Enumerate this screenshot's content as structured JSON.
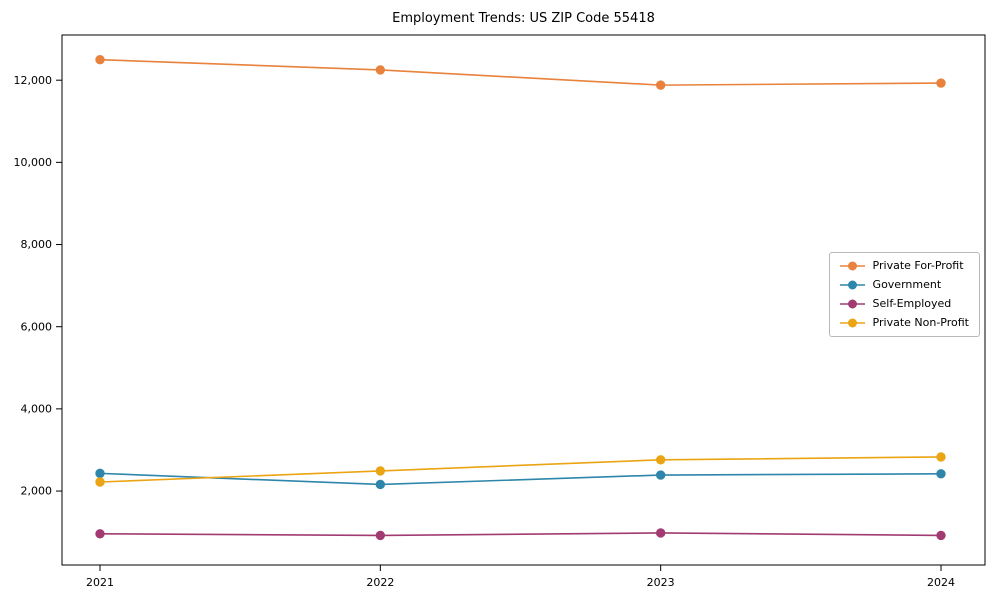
{
  "title": "Employment Trends: US ZIP Code 55418",
  "chart_data": {
    "type": "line",
    "x": [
      "2021",
      "2022",
      "2023",
      "2024"
    ],
    "series": [
      {
        "name": "Private For-Profit",
        "color": "#E8823C",
        "values": [
          12500,
          12250,
          11880,
          11930
        ]
      },
      {
        "name": "Government",
        "color": "#2E86AB",
        "values": [
          2430,
          2160,
          2390,
          2420
        ]
      },
      {
        "name": "Self-Employed",
        "color": "#A23B72",
        "values": [
          960,
          920,
          980,
          920
        ]
      },
      {
        "name": "Private Non-Profit",
        "color": "#EBA414",
        "values": [
          2220,
          2490,
          2760,
          2830
        ]
      }
    ],
    "yticks": [
      2000,
      4000,
      6000,
      8000,
      10000,
      12000
    ],
    "ylim": [
      200,
      13100
    ],
    "xlabel": "",
    "ylabel": "",
    "legend_position": "center right",
    "grid": false,
    "marker": "circle"
  }
}
